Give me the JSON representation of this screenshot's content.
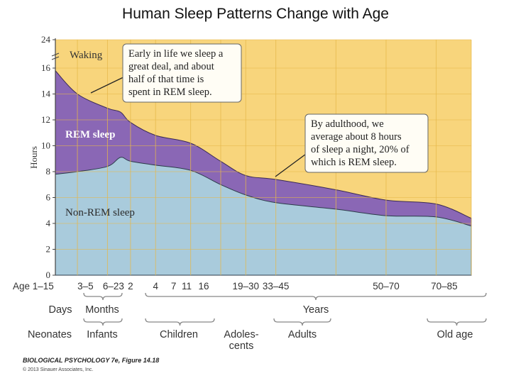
{
  "slide_title": "Human Sleep Patterns Change with Age",
  "chart_data": {
    "type": "area",
    "title": "Human Sleep Patterns Change with Age",
    "ylabel": "Hours",
    "xlabel": "Age",
    "ylim": [
      0,
      24
    ],
    "y_axis_break": "between 16 and 24",
    "y_ticks": [
      "0",
      "2",
      "4",
      "6",
      "8",
      "10",
      "12",
      "14",
      "16",
      "24"
    ],
    "x_ticks": [
      "Age 1–15",
      "3–5",
      "6–23",
      "2",
      "4",
      "7",
      "11",
      "16",
      "19–30",
      "33–45",
      "50–70",
      "70–85"
    ],
    "series": [
      {
        "name": "Non-REM sleep",
        "values": [
          7.8,
          8.0,
          8.4,
          9.1,
          8.8,
          8.5,
          8.1,
          7.0,
          6.2,
          5.6,
          5.1,
          4.6,
          4.5,
          3.8
        ]
      },
      {
        "name": "REM sleep",
        "values": [
          8.0,
          6.0,
          4.5,
          3.5,
          3.0,
          2.3,
          2.1,
          1.8,
          1.5,
          1.8,
          1.5,
          1.2,
          1.0,
          0.6
        ]
      },
      {
        "name": "Waking",
        "values": [
          8.2,
          10.0,
          11.1,
          11.4,
          12.2,
          13.2,
          13.8,
          15.2,
          16.3,
          16.6,
          17.4,
          18.2,
          18.5,
          19.6
        ]
      }
    ],
    "x_points": [
      0,
      2.2,
      5.2,
      6.5,
      7.5,
      10,
      13.5,
      16.5,
      19,
      22,
      28,
      33,
      38,
      41.5
    ],
    "area_labels": {
      "waking": "Waking",
      "rem": "REM sleep",
      "nonrem": "Non-REM sleep"
    },
    "annotations": [
      {
        "lines": [
          "Early in life we sleep a",
          "great deal, and about",
          "half of that time is",
          "spent in REM sleep."
        ]
      },
      {
        "lines": [
          "By adulthood, we",
          "average about 8 hours",
          "of sleep a night, 20% of",
          "which is REM sleep."
        ]
      }
    ],
    "x_units": [
      {
        "label": "Days"
      },
      {
        "label": "Months"
      },
      {
        "label": "Years"
      }
    ],
    "x_groups": [
      {
        "label": [
          "Neonates"
        ]
      },
      {
        "label": [
          "Infants"
        ]
      },
      {
        "label": [
          "Children"
        ]
      },
      {
        "label": [
          "Adoles-",
          "cents"
        ]
      },
      {
        "label": [
          "Adults"
        ]
      },
      {
        "label": [
          "Old age"
        ]
      }
    ]
  },
  "colors": {
    "waking": "#f8d57c",
    "rem": "#8a67b5",
    "nonrem": "#a9cbdc",
    "grid": "#e6b84a",
    "text": "#333333"
  },
  "credit": {
    "line1": "BIOLOGICAL PSYCHOLOGY 7e, Figure 14.18",
    "line2": "© 2013 Sinauer Associates, Inc."
  }
}
